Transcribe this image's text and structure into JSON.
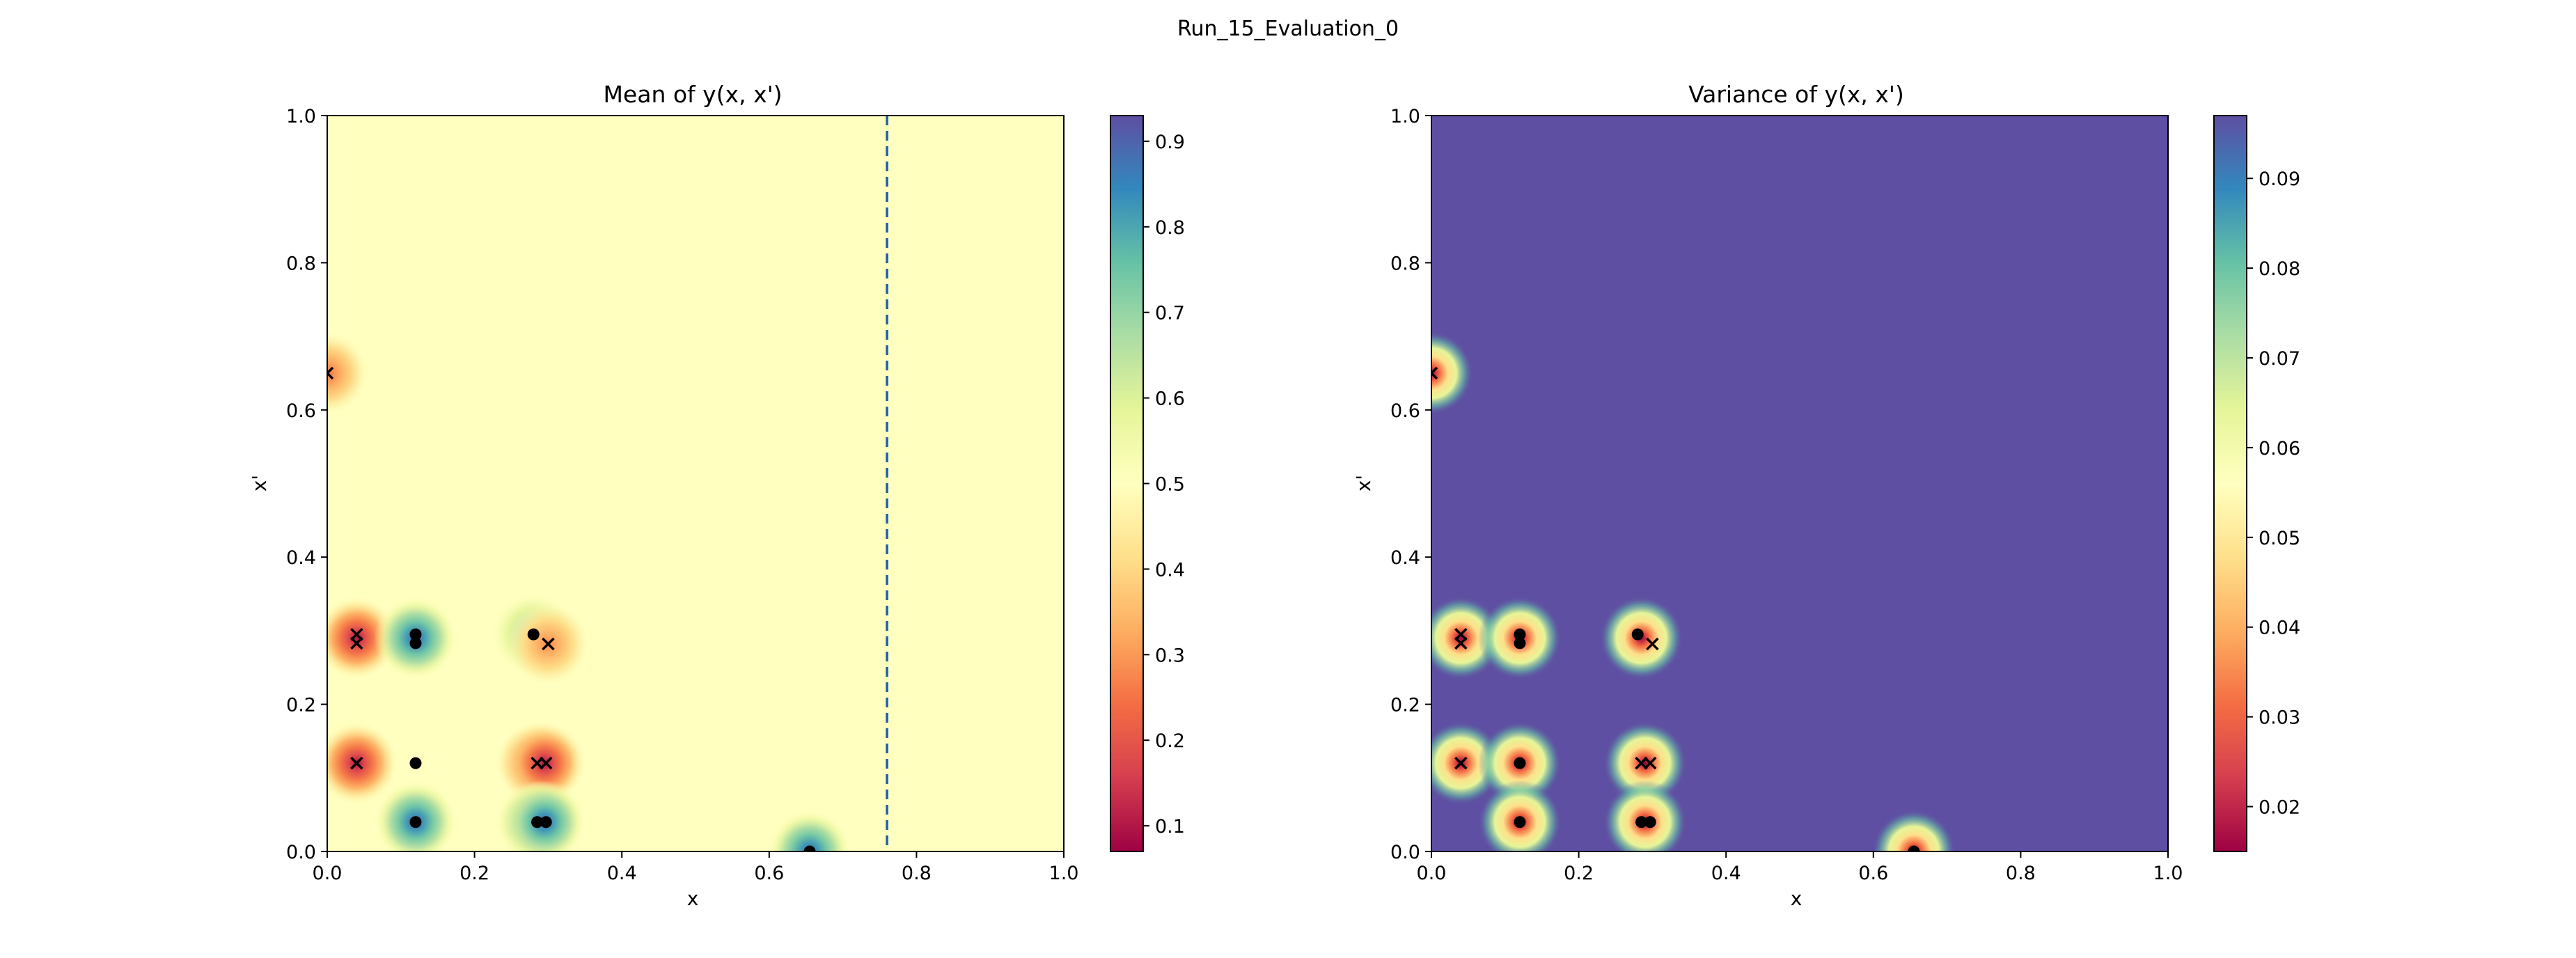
{
  "figure": {
    "title": "Run_15_Evaluation_0"
  },
  "chart_data": [
    {
      "type": "heatmap",
      "title": "Mean of y(x, x')",
      "xlabel": "x",
      "ylabel": "x'",
      "xlim": [
        0,
        1
      ],
      "ylim": [
        0,
        1
      ],
      "xticks": [
        "0.0",
        "0.2",
        "0.4",
        "0.6",
        "0.8",
        "1.0"
      ],
      "yticks": [
        "0.0",
        "0.2",
        "0.4",
        "0.6",
        "0.8",
        "1.0"
      ],
      "colormap": "Spectral",
      "background_value": 0.5,
      "colorbar": {
        "range": [
          0.07,
          0.93
        ],
        "ticks": [
          "0.1",
          "0.2",
          "0.3",
          "0.4",
          "0.5",
          "0.6",
          "0.7",
          "0.8",
          "0.9"
        ]
      },
      "vline": {
        "x": 0.76,
        "style": "dashed",
        "color": "#1f5fa8"
      },
      "blobs": [
        {
          "x": 0.0,
          "y": 0.65,
          "value": 0.25
        },
        {
          "x": 0.04,
          "y": 0.29,
          "value": 0.1
        },
        {
          "x": 0.12,
          "y": 0.29,
          "value": 0.9
        },
        {
          "x": 0.28,
          "y": 0.295,
          "value": 0.72
        },
        {
          "x": 0.3,
          "y": 0.282,
          "value": 0.28
        },
        {
          "x": 0.04,
          "y": 0.12,
          "value": 0.1
        },
        {
          "x": 0.285,
          "y": 0.12,
          "value": 0.1
        },
        {
          "x": 0.295,
          "y": 0.12,
          "value": 0.1
        },
        {
          "x": 0.12,
          "y": 0.04,
          "value": 0.9
        },
        {
          "x": 0.285,
          "y": 0.04,
          "value": 0.9
        },
        {
          "x": 0.295,
          "y": 0.04,
          "value": 0.9
        },
        {
          "x": 0.655,
          "y": 0.0,
          "value": 0.9
        }
      ],
      "markers": [
        {
          "x": 0.0,
          "y": 0.65,
          "shape": "x"
        },
        {
          "x": 0.04,
          "y": 0.295,
          "shape": "x"
        },
        {
          "x": 0.04,
          "y": 0.283,
          "shape": "x"
        },
        {
          "x": 0.12,
          "y": 0.295,
          "shape": "dot"
        },
        {
          "x": 0.12,
          "y": 0.283,
          "shape": "dot"
        },
        {
          "x": 0.28,
          "y": 0.295,
          "shape": "dot"
        },
        {
          "x": 0.3,
          "y": 0.282,
          "shape": "x"
        },
        {
          "x": 0.04,
          "y": 0.12,
          "shape": "x"
        },
        {
          "x": 0.12,
          "y": 0.12,
          "shape": "dot"
        },
        {
          "x": 0.285,
          "y": 0.12,
          "shape": "x"
        },
        {
          "x": 0.297,
          "y": 0.12,
          "shape": "x"
        },
        {
          "x": 0.12,
          "y": 0.04,
          "shape": "dot"
        },
        {
          "x": 0.285,
          "y": 0.04,
          "shape": "dot"
        },
        {
          "x": 0.297,
          "y": 0.04,
          "shape": "dot"
        },
        {
          "x": 0.655,
          "y": 0.0,
          "shape": "dot"
        }
      ]
    },
    {
      "type": "heatmap",
      "title": "Variance of y(x, x')",
      "xlabel": "x",
      "ylabel": "x'",
      "xlim": [
        0,
        1
      ],
      "ylim": [
        0,
        1
      ],
      "xticks": [
        "0.0",
        "0.2",
        "0.4",
        "0.6",
        "0.8",
        "1.0"
      ],
      "yticks": [
        "0.0",
        "0.2",
        "0.4",
        "0.6",
        "0.8",
        "1.0"
      ],
      "colormap": "Spectral",
      "background_value": 0.097,
      "colorbar": {
        "range": [
          0.015,
          0.097
        ],
        "ticks": [
          "0.02",
          "0.03",
          "0.04",
          "0.05",
          "0.06",
          "0.07",
          "0.08",
          "0.09"
        ]
      },
      "blobs": [
        {
          "x": 0.0,
          "y": 0.65,
          "value": 0.015
        },
        {
          "x": 0.04,
          "y": 0.29,
          "value": 0.015
        },
        {
          "x": 0.12,
          "y": 0.29,
          "value": 0.015
        },
        {
          "x": 0.285,
          "y": 0.29,
          "value": 0.015
        },
        {
          "x": 0.04,
          "y": 0.12,
          "value": 0.015
        },
        {
          "x": 0.12,
          "y": 0.12,
          "value": 0.015
        },
        {
          "x": 0.29,
          "y": 0.12,
          "value": 0.015
        },
        {
          "x": 0.12,
          "y": 0.04,
          "value": 0.015
        },
        {
          "x": 0.29,
          "y": 0.04,
          "value": 0.015
        },
        {
          "x": 0.655,
          "y": 0.0,
          "value": 0.015
        }
      ],
      "markers": [
        {
          "x": 0.0,
          "y": 0.65,
          "shape": "x"
        },
        {
          "x": 0.04,
          "y": 0.295,
          "shape": "x"
        },
        {
          "x": 0.04,
          "y": 0.283,
          "shape": "x"
        },
        {
          "x": 0.12,
          "y": 0.295,
          "shape": "dot"
        },
        {
          "x": 0.12,
          "y": 0.283,
          "shape": "dot"
        },
        {
          "x": 0.28,
          "y": 0.295,
          "shape": "dot"
        },
        {
          "x": 0.3,
          "y": 0.282,
          "shape": "x"
        },
        {
          "x": 0.04,
          "y": 0.12,
          "shape": "x"
        },
        {
          "x": 0.12,
          "y": 0.12,
          "shape": "dot"
        },
        {
          "x": 0.285,
          "y": 0.12,
          "shape": "x"
        },
        {
          "x": 0.297,
          "y": 0.12,
          "shape": "x"
        },
        {
          "x": 0.12,
          "y": 0.04,
          "shape": "dot"
        },
        {
          "x": 0.285,
          "y": 0.04,
          "shape": "dot"
        },
        {
          "x": 0.297,
          "y": 0.04,
          "shape": "dot"
        },
        {
          "x": 0.655,
          "y": 0.0,
          "shape": "dot"
        }
      ]
    }
  ]
}
